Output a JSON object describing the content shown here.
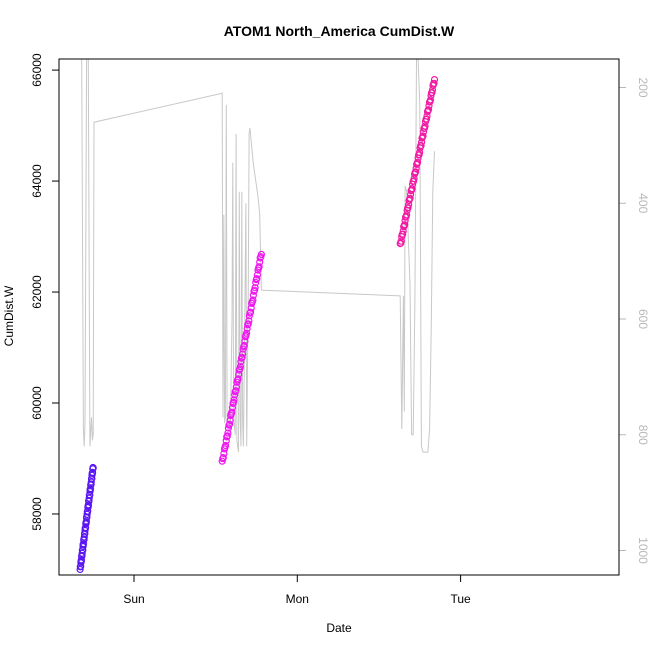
{
  "chart_data": {
    "type": "scatter",
    "title": "ATOM1 North_America CumDist.W",
    "xlabel": "Date",
    "ylabel": "CumDist.W",
    "x_ticks": [
      "Sun",
      "Mon",
      "Tue"
    ],
    "ylim": [
      56900,
      66200
    ],
    "y_ticks": [
      58000,
      60000,
      62000,
      64000,
      66000
    ],
    "y2_ticks": [
      200,
      400,
      600,
      800,
      1000
    ],
    "y2_scale": "reversed",
    "y2_color": "#b8b8b8",
    "grid": false,
    "legend": "none",
    "series_points": [
      {
        "color": "#5b17f5",
        "x_day": [
          -0.33,
          -0.25
        ],
        "y_range": [
          57000,
          58850
        ]
      },
      {
        "color": "#ef16f0",
        "x_day": [
          0.54,
          0.78
        ],
        "y_range": [
          58930,
          62700
        ]
      },
      {
        "color": "#f21aa4",
        "x_day": [
          1.63,
          1.84
        ],
        "y_range": [
          62850,
          65830
        ]
      }
    ],
    "series_line": {
      "color": "#c8c8c8",
      "axis": "right",
      "x_day": [
        -0.33,
        -0.32,
        -0.31,
        -0.305,
        -0.3,
        -0.29,
        -0.28,
        -0.27,
        -0.26,
        -0.255,
        -0.25,
        -0.245,
        0.54,
        0.545,
        0.55,
        0.555,
        0.56,
        0.565,
        0.57,
        0.58,
        0.585,
        0.59,
        0.6,
        0.605,
        0.61,
        0.62,
        0.625,
        0.63,
        0.64,
        0.645,
        0.65,
        0.655,
        0.66,
        0.665,
        0.67,
        0.68,
        0.685,
        0.69,
        0.7,
        0.705,
        0.71,
        0.72,
        0.73,
        0.74,
        0.75,
        0.76,
        0.77,
        0.78,
        1.63,
        1.64,
        1.65,
        1.655,
        1.66,
        1.67,
        1.68,
        1.69,
        1.7,
        1.71,
        1.72,
        1.73,
        1.735,
        1.74,
        1.75,
        1.76,
        1.77,
        1.78,
        1.79,
        1.8,
        1.81,
        1.82,
        1.83,
        1.84
      ],
      "y_value": [
        0,
        0,
        790,
        820,
        780,
        20,
        0,
        820,
        770,
        810,
        800,
        260,
        210,
        770,
        420,
        780,
        770,
        230,
        780,
        760,
        790,
        800,
        600,
        330,
        770,
        800,
        280,
        810,
        830,
        380,
        770,
        820,
        380,
        770,
        820,
        560,
        400,
        820,
        540,
        280,
        270,
        300,
        330,
        350,
        370,
        390,
        420,
        550,
        560,
        790,
        560,
        760,
        370,
        380,
        460,
        540,
        800,
        800,
        570,
        60,
        80,
        150,
        230,
        820,
        830,
        830,
        830,
        830,
        790,
        620,
        380,
        310
      ]
    }
  }
}
